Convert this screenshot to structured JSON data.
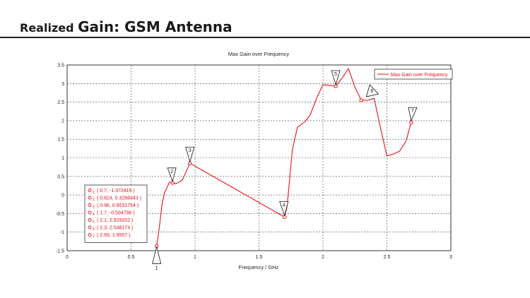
{
  "slide": {
    "title_small": "Realized",
    "title_large": "Gain: GSM Antenna"
  },
  "chart_data": {
    "type": "line",
    "title": "Max Gain over Frequency",
    "xlabel": "Frequency / GHz",
    "ylabel": "",
    "xlim": [
      0,
      3
    ],
    "ylim": [
      -1.5,
      3.5
    ],
    "x_ticks": [
      0,
      0.5,
      1,
      1.5,
      2,
      2.5,
      3
    ],
    "x_tick_labels": [
      "0",
      "0.5",
      "1",
      "1.5",
      "2",
      "2.5",
      "3"
    ],
    "y_ticks": [
      -1.5,
      -1,
      -0.5,
      0,
      0.5,
      1,
      1.5,
      2,
      2.5,
      3,
      3.5
    ],
    "y_tick_labels": [
      "-1.5",
      "-1",
      "-0.5",
      "0",
      "0.5",
      "1",
      "1.5",
      "2",
      "2.5",
      "3",
      "3.5"
    ],
    "grid": true,
    "legend_position": "top-right",
    "series": [
      {
        "name": "Max Gain over Frequency",
        "color": "#e8101a",
        "x": [
          0.7,
          0.72,
          0.74,
          0.76,
          0.78,
          0.8,
          0.824,
          0.85,
          0.9,
          0.96,
          1.7,
          1.72,
          1.76,
          1.8,
          1.86,
          1.9,
          1.95,
          2.0,
          2.05,
          2.1,
          2.15,
          2.2,
          2.25,
          2.3,
          2.35,
          2.4,
          2.45,
          2.5,
          2.55,
          2.6,
          2.65,
          2.69
        ],
        "y": [
          -1.372419,
          -0.9,
          -0.3,
          0.05,
          0.2,
          0.34,
          0.3288443,
          0.3,
          0.4,
          0.8531754,
          -0.594796,
          -0.3,
          1.2,
          1.82,
          1.98,
          2.15,
          2.6,
          2.97,
          2.95,
          2.929202,
          3.15,
          3.4,
          2.9,
          2.548174,
          2.55,
          2.6,
          1.8,
          1.05,
          1.1,
          1.18,
          1.45,
          1.9557
        ]
      }
    ],
    "markers": [
      {
        "label": "1",
        "x": 0.7,
        "y": -1.372419,
        "text": "( 0.7, -1.372419 )"
      },
      {
        "label": "2",
        "x": 0.824,
        "y": 0.3288443,
        "text": "( 0.824, 0.3288443 )"
      },
      {
        "label": "3",
        "x": 0.96,
        "y": 0.8531754,
        "text": "( 0.96, 0.8531754 )"
      },
      {
        "label": "4",
        "x": 1.7,
        "y": -0.594796,
        "text": "( 1.7, -0.594796 )"
      },
      {
        "label": "5",
        "x": 2.1,
        "y": 2.929202,
        "text": "( 2.1, 2.929202 )"
      },
      {
        "label": "6",
        "x": 2.3,
        "y": 2.548174,
        "text": "( 2.3, 2.548174 )"
      },
      {
        "label": "7",
        "x": 2.69,
        "y": 1.9557,
        "text": "( 2.69, 1.9557 )"
      }
    ]
  }
}
